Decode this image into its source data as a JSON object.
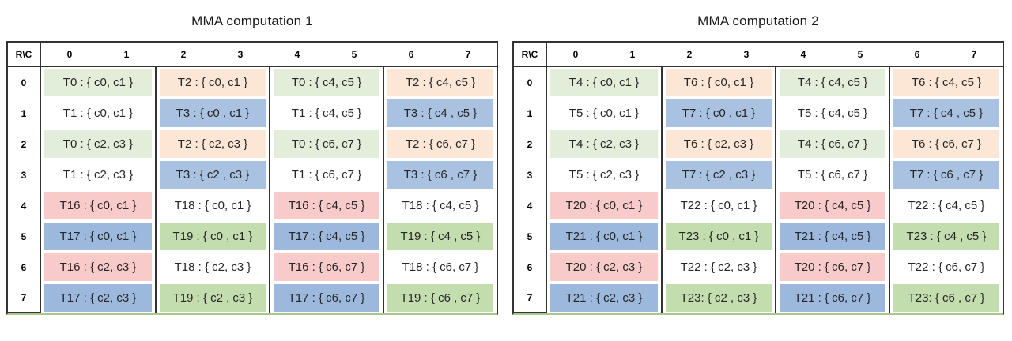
{
  "palette": {
    "green": "#e2eeda",
    "peach": "#fce6d5",
    "blue": "#a9c2e1",
    "blue2": "#9cb8dc",
    "green2": "#c4ddaf",
    "pink": "#f8caca",
    "white": "#ffffff",
    "border": "#333333",
    "bottom_edge": "#a9c98c",
    "text": "#262626"
  },
  "tables": [
    {
      "title": "MMA computation 1",
      "corner_label": "R\\C",
      "col_headers": [
        "0",
        "1",
        "2",
        "3",
        "4",
        "5",
        "6",
        "7"
      ],
      "rows": [
        {
          "num": "0",
          "cells": [
            {
              "text": "T0 : { c0, c1 }",
              "fill": "green"
            },
            {
              "text": "T2 : { c0, c1 }",
              "fill": "peach"
            },
            {
              "text": "T0 : { c4, c5 }",
              "fill": "green"
            },
            {
              "text": "T2 : { c4, c5 }",
              "fill": "peach"
            }
          ]
        },
        {
          "num": "1",
          "cells": [
            {
              "text": "T1 : { c0, c1 }",
              "fill": "white"
            },
            {
              "text": "T3 : { c0 , c1 }",
              "fill": "blue"
            },
            {
              "text": "T1 : { c4, c5 }",
              "fill": "white"
            },
            {
              "text": "T3 : { c4 , c5 }",
              "fill": "blue"
            }
          ]
        },
        {
          "num": "2",
          "cells": [
            {
              "text": "T0 : { c2, c3 }",
              "fill": "green"
            },
            {
              "text": "T2 : { c2, c3 }",
              "fill": "peach"
            },
            {
              "text": "T0 : { c6, c7 }",
              "fill": "green"
            },
            {
              "text": "T2 : { c6, c7 }",
              "fill": "peach"
            }
          ]
        },
        {
          "num": "3",
          "cells": [
            {
              "text": "T1 : { c2, c3 }",
              "fill": "white"
            },
            {
              "text": "T3 : { c2 , c3 }",
              "fill": "blue"
            },
            {
              "text": "T1 : { c6, c7 }",
              "fill": "white"
            },
            {
              "text": "T3 : { c6 , c7 }",
              "fill": "blue"
            }
          ]
        },
        {
          "num": "4",
          "cells": [
            {
              "text": "T16 : { c0, c1 }",
              "fill": "pink"
            },
            {
              "text": "T18 : { c0, c1 }",
              "fill": "white"
            },
            {
              "text": "T16 : { c4, c5 }",
              "fill": "pink"
            },
            {
              "text": "T18 : { c4, c5 }",
              "fill": "white"
            }
          ]
        },
        {
          "num": "5",
          "cells": [
            {
              "text": "T17 : { c0, c1 }",
              "fill": "blue2"
            },
            {
              "text": "T19 : { c0 , c1 }",
              "fill": "green2"
            },
            {
              "text": "T17 : { c4, c5 }",
              "fill": "blue2"
            },
            {
              "text": "T19 : { c4 , c5 }",
              "fill": "green2"
            }
          ]
        },
        {
          "num": "6",
          "cells": [
            {
              "text": "T16 : { c2, c3 }",
              "fill": "pink"
            },
            {
              "text": "T18 : { c2, c3 }",
              "fill": "white"
            },
            {
              "text": "T16 : { c6, c7 }",
              "fill": "pink"
            },
            {
              "text": "T18 : { c6, c7 }",
              "fill": "white"
            }
          ]
        },
        {
          "num": "7",
          "cells": [
            {
              "text": "T17 : { c2, c3 }",
              "fill": "blue2"
            },
            {
              "text": "T19 : { c2 , c3 }",
              "fill": "green2"
            },
            {
              "text": "T17 : { c6, c7 }",
              "fill": "blue2"
            },
            {
              "text": "T19 : { c6 , c7 }",
              "fill": "green2"
            }
          ]
        }
      ]
    },
    {
      "title": "MMA computation 2",
      "corner_label": "R\\C",
      "col_headers": [
        "0",
        "1",
        "2",
        "3",
        "4",
        "5",
        "6",
        "7"
      ],
      "rows": [
        {
          "num": "0",
          "cells": [
            {
              "text": "T4 : { c0, c1 }",
              "fill": "green"
            },
            {
              "text": "T6 : { c0, c1 }",
              "fill": "peach"
            },
            {
              "text": "T4 : { c4, c5 }",
              "fill": "green"
            },
            {
              "text": "T6 : { c4, c5 }",
              "fill": "peach"
            }
          ]
        },
        {
          "num": "1",
          "cells": [
            {
              "text": "T5 : { c0, c1 }",
              "fill": "white"
            },
            {
              "text": "T7 : { c0 , c1 }",
              "fill": "blue"
            },
            {
              "text": "T5 : { c4, c5 }",
              "fill": "white"
            },
            {
              "text": "T7 : { c4 , c5 }",
              "fill": "blue"
            }
          ]
        },
        {
          "num": "2",
          "cells": [
            {
              "text": "T4 : { c2, c3 }",
              "fill": "green"
            },
            {
              "text": "T6 : { c2, c3 }",
              "fill": "peach"
            },
            {
              "text": "T4 : { c6, c7 }",
              "fill": "green"
            },
            {
              "text": "T6 : { c6, c7 }",
              "fill": "peach"
            }
          ]
        },
        {
          "num": "3",
          "cells": [
            {
              "text": "T5 : { c2, c3 }",
              "fill": "white"
            },
            {
              "text": "T7 : { c2 , c3 }",
              "fill": "blue"
            },
            {
              "text": "T5 : { c6, c7 }",
              "fill": "white"
            },
            {
              "text": "T7 : { c6 , c7 }",
              "fill": "blue"
            }
          ]
        },
        {
          "num": "4",
          "cells": [
            {
              "text": "T20 : { c0, c1 }",
              "fill": "pink"
            },
            {
              "text": "T22 : { c0, c1 }",
              "fill": "white"
            },
            {
              "text": "T20 : { c4, c5 }",
              "fill": "pink"
            },
            {
              "text": "T22 : { c4, c5 }",
              "fill": "white"
            }
          ]
        },
        {
          "num": "5",
          "cells": [
            {
              "text": "T21 : { c0, c1 }",
              "fill": "blue2"
            },
            {
              "text": "T23 : { c0 , c1 }",
              "fill": "green2"
            },
            {
              "text": "T21 : { c4, c5 }",
              "fill": "blue2"
            },
            {
              "text": "T23 : { c4 , c5 }",
              "fill": "green2"
            }
          ]
        },
        {
          "num": "6",
          "cells": [
            {
              "text": "T20 : { c2, c3 }",
              "fill": "pink"
            },
            {
              "text": "T22 : { c2, c3 }",
              "fill": "white"
            },
            {
              "text": "T20 : { c6, c7 }",
              "fill": "pink"
            },
            {
              "text": "T22 : { c6, c7 }",
              "fill": "white"
            }
          ]
        },
        {
          "num": "7",
          "cells": [
            {
              "text": "T21 : { c2, c3 }",
              "fill": "blue2"
            },
            {
              "text": "T23: { c2 , c3 }",
              "fill": "green2"
            },
            {
              "text": "T21 : { c6, c7 }",
              "fill": "blue2"
            },
            {
              "text": "T23: { c6 , c7 }",
              "fill": "green2"
            }
          ]
        }
      ]
    }
  ]
}
